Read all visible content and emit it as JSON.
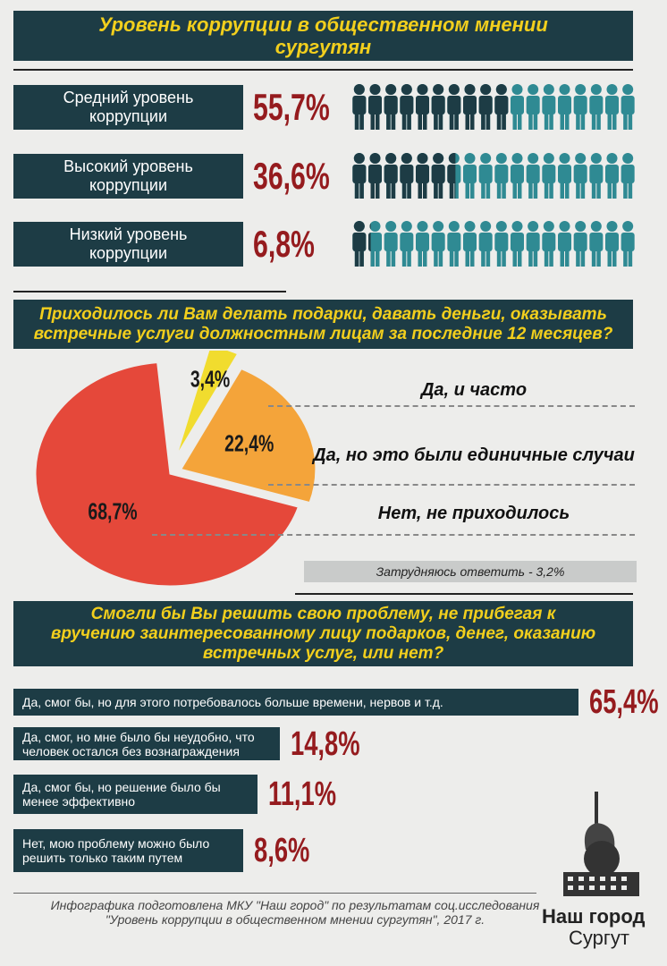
{
  "header": {
    "title": "Уровень коррупции в общественном мнении сургутян"
  },
  "levels": [
    {
      "label": "Средний уровень коррупции",
      "value": 55.7,
      "value_label": "55,7%"
    },
    {
      "label": "Высокий уровень коррупции",
      "value": 36.6,
      "value_label": "36,6%"
    },
    {
      "label": "Низкий уровень коррупции",
      "value": 6.8,
      "value_label": "6,8%"
    }
  ],
  "question1": {
    "title": "Приходилось ли Вам делать подарки, давать деньги, оказывать встречные услуги должностным лицам за последние 12 месяцев?",
    "answers": [
      {
        "label": "Да, и часто",
        "value": 3.4,
        "value_label": "3,4%",
        "color": "#f1dc2e"
      },
      {
        "label": "Да, но это были единичные случаи",
        "value": 22.4,
        "value_label": "22,4%",
        "color": "#f4a43a"
      },
      {
        "label": "Нет, не приходилось",
        "value": 68.7,
        "value_label": "68,7%",
        "color": "#e5483a"
      }
    ],
    "note": "Затрудняюсь ответить - 3,2%"
  },
  "question2": {
    "title": "Смогли бы Вы решить свою проблему, не прибегая к вручению заинтересованному лицу подарков, денег, оказанию встречных услуг, или нет?",
    "answers": [
      {
        "label": "Да, смог бы, но для этого потребовалось больше времени, нервов и т.д.",
        "value": 65.4,
        "value_label": "65,4%"
      },
      {
        "label": "Да, смог, но мне было бы неудобно, что человек остался без вознаграждения",
        "value": 14.8,
        "value_label": "14,8%"
      },
      {
        "label": "Да, смог бы, но решение было бы менее эффективно",
        "value": 11.1,
        "value_label": "11,1%"
      },
      {
        "label": "Нет, мою проблему можно было решить только таким путем",
        "value": 8.6,
        "value_label": "8,6%"
      }
    ]
  },
  "footer": "Инфографика подготовлена МКУ \"Наш город\" по результатам соц.исследования \"Уровень коррупции в общественном мнении сургутян\", 2017 г.",
  "logo": {
    "name": "Наш город",
    "city": "Сургут"
  }
}
